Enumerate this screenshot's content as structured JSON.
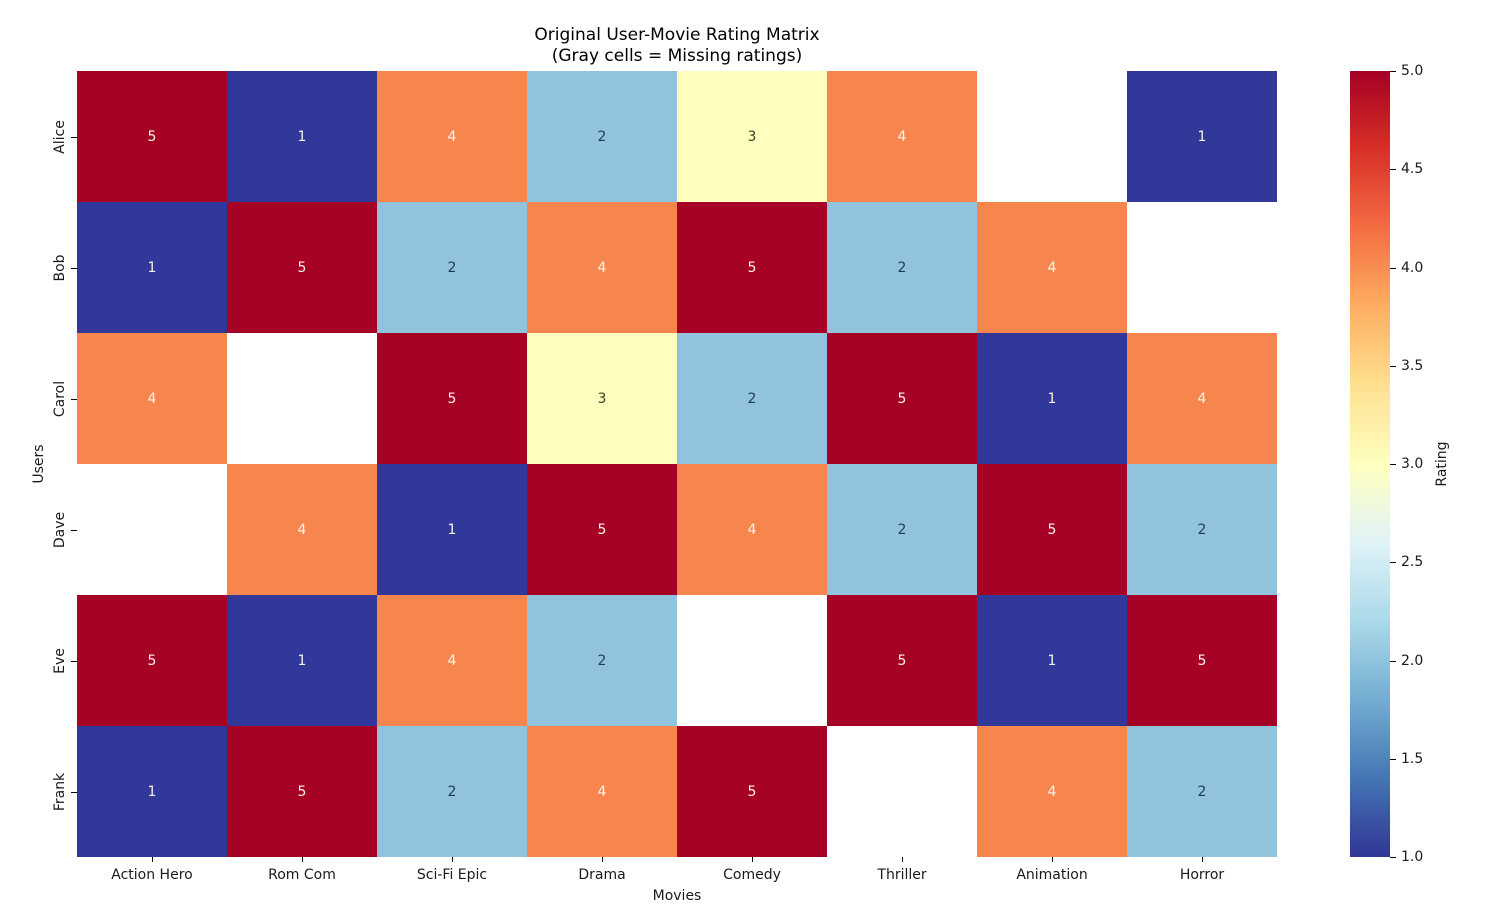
{
  "chart_data": {
    "type": "heatmap",
    "title": "Original User-Movie Rating Matrix",
    "subtitle": "(Gray cells = Missing ratings)",
    "xlabel": "Movies",
    "ylabel": "Users",
    "rows": [
      "Alice",
      "Bob",
      "Carol",
      "Dave",
      "Eve",
      "Frank"
    ],
    "columns": [
      "Action Hero",
      "Rom Com",
      "Sci-Fi Epic",
      "Drama",
      "Comedy",
      "Thriller",
      "Animation",
      "Horror"
    ],
    "values": [
      [
        5,
        1,
        4,
        2,
        3,
        4,
        null,
        1
      ],
      [
        1,
        5,
        2,
        4,
        5,
        2,
        4,
        null
      ],
      [
        4,
        null,
        5,
        3,
        2,
        5,
        1,
        4
      ],
      [
        null,
        4,
        1,
        5,
        4,
        2,
        5,
        2
      ],
      [
        5,
        1,
        4,
        2,
        null,
        5,
        1,
        5
      ],
      [
        1,
        5,
        2,
        4,
        5,
        null,
        4,
        2
      ]
    ],
    "vmin": 1,
    "vmax": 5,
    "grid": false,
    "background": "#ffffff",
    "cell_colors": {
      "1": {
        "bg": "#32389a",
        "fg": "#f8f4ec"
      },
      "2": {
        "bg": "#91c3dd",
        "fg": "#1f3c51"
      },
      "3": {
        "bg": "#feffbf",
        "fg": "#3f3f24"
      },
      "4": {
        "bg": "#f6854e",
        "fg": "#fdf4e5"
      },
      "5": {
        "bg": "#a60226",
        "fg": "#fbf3ef"
      },
      "missing": {
        "bg": "#ffffff",
        "fg": "#ffffff"
      }
    },
    "colorbar": {
      "label": "Rating",
      "ticks": [
        {
          "label": "5.0",
          "value": 5.0
        },
        {
          "label": "4.5",
          "value": 4.5
        },
        {
          "label": "4.0",
          "value": 4.0
        },
        {
          "label": "3.5",
          "value": 3.5
        },
        {
          "label": "3.0",
          "value": 3.0
        },
        {
          "label": "2.5",
          "value": 2.5
        },
        {
          "label": "2.0",
          "value": 2.0
        },
        {
          "label": "1.5",
          "value": 1.5
        },
        {
          "label": "1.0",
          "value": 1.0
        }
      ],
      "gradient_bottom_to_top": [
        "#313695",
        "#4575b4",
        "#74add1",
        "#abd9e9",
        "#e0f3f8",
        "#ffffbf",
        "#fee090",
        "#fdae61",
        "#f46d43",
        "#d73027",
        "#a50026"
      ]
    }
  }
}
